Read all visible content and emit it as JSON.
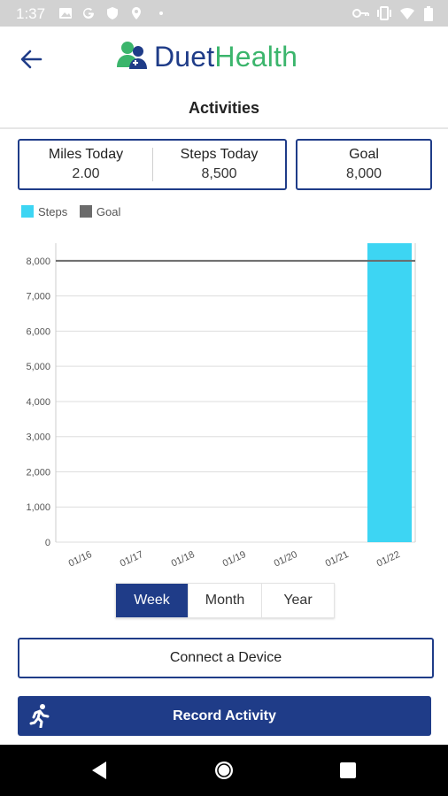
{
  "status_bar": {
    "time": "1:37",
    "left_icons": [
      "image-icon",
      "google-icon",
      "shield-icon",
      "location-icon",
      "dot-icon"
    ],
    "right_icons": [
      "key-icon",
      "vibrate-icon",
      "wifi-icon",
      "battery-icon"
    ]
  },
  "header": {
    "back_icon": "arrow-left-icon",
    "logo_part1": "Duet",
    "logo_part2": "Health",
    "title": "Activities"
  },
  "stats": {
    "miles_label": "Miles Today",
    "miles_value": "2.00",
    "steps_label": "Steps Today",
    "steps_value": "8,500",
    "goal_label": "Goal",
    "goal_value": "8,000"
  },
  "legend": {
    "steps_label": "Steps",
    "goal_label": "Goal"
  },
  "colors": {
    "primary": "#1f3c88",
    "steps": "#3dd5f3",
    "goal": "#6b6b6b",
    "logo_green": "#3bb56c"
  },
  "chart_data": {
    "type": "bar",
    "categories": [
      "01/16",
      "01/17",
      "01/18",
      "01/19",
      "01/20",
      "01/21",
      "01/22"
    ],
    "series": [
      {
        "name": "Steps",
        "values": [
          0,
          0,
          0,
          0,
          0,
          0,
          8500
        ]
      },
      {
        "name": "Goal",
        "values": [
          8000,
          8000,
          8000,
          8000,
          8000,
          8000,
          8000
        ]
      }
    ],
    "ylim": [
      0,
      8500
    ],
    "yticks": [
      0,
      1000,
      2000,
      3000,
      4000,
      5000,
      6000,
      7000,
      8000
    ],
    "ytick_labels": [
      "0",
      "1,000",
      "2,000",
      "3,000",
      "4,000",
      "5,000",
      "6,000",
      "7,000",
      "8,000"
    ],
    "grid": true,
    "legend_position": "top-left"
  },
  "range_tabs": {
    "week": "Week",
    "month": "Month",
    "year": "Year",
    "selected": "Week"
  },
  "buttons": {
    "connect": "Connect a Device",
    "record": "Record Activity",
    "record_icon": "runner-icon"
  },
  "nav": {
    "back_icon": "nav-back-icon",
    "home_icon": "nav-home-icon",
    "recents_icon": "nav-recents-icon"
  }
}
